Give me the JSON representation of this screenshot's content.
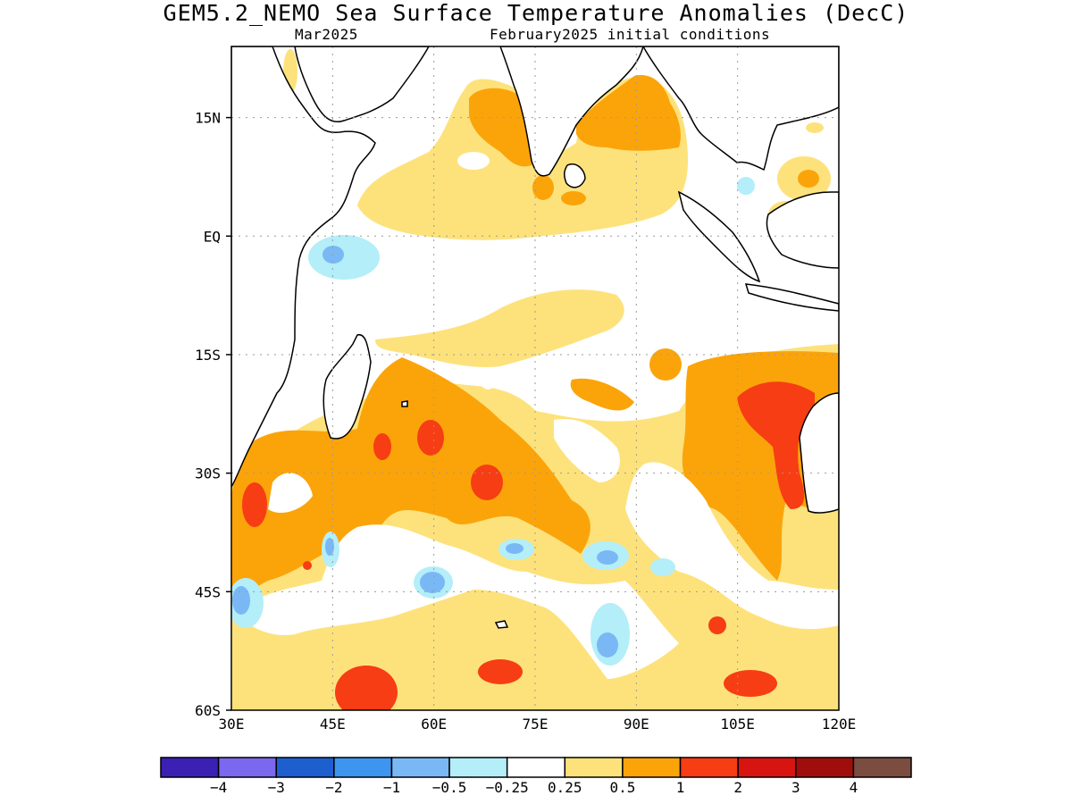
{
  "title": "GEM5.2_NEMO Sea Surface Temperature Anomalies (DecC)",
  "subtitle_left": "Mar2025",
  "subtitle_right": "February2025 initial conditions",
  "map": {
    "lon_range": [
      30,
      120
    ],
    "lat_range": [
      -60,
      24
    ],
    "lon_ticks": [
      "30E",
      "45E",
      "60E",
      "75E",
      "90E",
      "105E",
      "120E"
    ],
    "lat_ticks": [
      "15N",
      "EQ",
      "15S",
      "30S",
      "45S",
      "60S"
    ],
    "grid": "dotted"
  },
  "colorbar": {
    "labels": [
      "−4",
      "−3",
      "−2",
      "−1",
      "−0.5",
      "−0.25",
      "0.25",
      "0.5",
      "1",
      "2",
      "3",
      "4"
    ],
    "colors": [
      "#3a21b4",
      "#7b68ee",
      "#1e5fd0",
      "#3d95ef",
      "#7ab8f5",
      "#b3eef9",
      "#ffffff",
      "#fde27c",
      "#fba40a",
      "#f73d14",
      "#d71410",
      "#a00e0c",
      "#7a4d40"
    ]
  },
  "palette": {
    "yellow": "#fde27c",
    "orange": "#fba40a",
    "red": "#f73d14",
    "lightblue": "#b3eef9",
    "blue": "#7ab8f5",
    "white": "#ffffff"
  }
}
